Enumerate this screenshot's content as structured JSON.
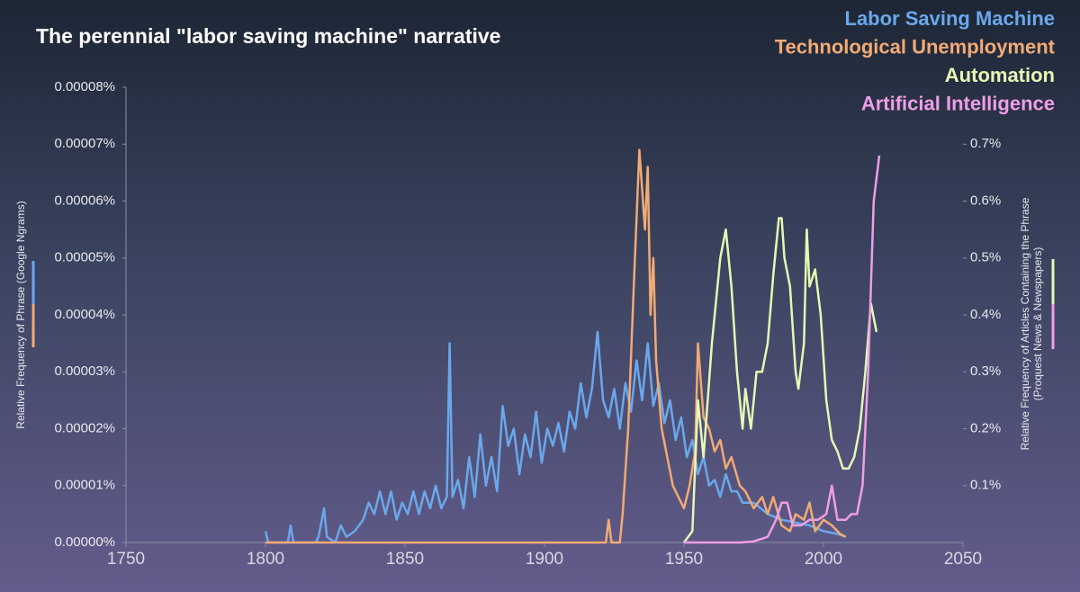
{
  "chart_data": {
    "type": "line",
    "title": "The perennial \"labor saving machine\" narrative",
    "ylabel": "Relative Frequency of Phrase (Google Ngrams)",
    "y2label": [
      "Relative Frequency of Articles Containing the Phrase",
      "(Proquest News & Newspapers)"
    ],
    "xlim": [
      1750,
      2050
    ],
    "xticks": [
      1750,
      1800,
      1850,
      1900,
      1950,
      2000,
      2050
    ],
    "ylim": [
      0,
      8e-05
    ],
    "yticks": [
      {
        "value": 0,
        "label": "0.00000%"
      },
      {
        "value": 1e-05,
        "label": "0.00001%"
      },
      {
        "value": 2e-05,
        "label": "0.00002%"
      },
      {
        "value": 3e-05,
        "label": "0.00003%"
      },
      {
        "value": 4e-05,
        "label": "0.00004%"
      },
      {
        "value": 5e-05,
        "label": "0.00005%"
      },
      {
        "value": 6e-05,
        "label": "0.00006%"
      },
      {
        "value": 7e-05,
        "label": "0.00007%"
      },
      {
        "value": 8e-05,
        "label": "0.00008%"
      }
    ],
    "y2lim": [
      0,
      0.8
    ],
    "y2ticks": [
      {
        "value": 0.1,
        "label": "0.1%"
      },
      {
        "value": 0.2,
        "label": "0.2%"
      },
      {
        "value": 0.3,
        "label": "0.3%"
      },
      {
        "value": 0.4,
        "label": "0.4%"
      },
      {
        "value": 0.5,
        "label": "0.5%"
      },
      {
        "value": 0.6,
        "label": "0.6%"
      },
      {
        "value": 0.7,
        "label": "0.7%"
      }
    ],
    "series": [
      {
        "name": "Labor Saving Machine",
        "color": "#6aa8ec",
        "axis": "y",
        "x": [
          1800,
          1801,
          1808,
          1809,
          1810,
          1818,
          1819,
          1821,
          1822,
          1825,
          1827,
          1829,
          1832,
          1835,
          1837,
          1839,
          1841,
          1843,
          1845,
          1847,
          1849,
          1851,
          1853,
          1855,
          1857,
          1859,
          1861,
          1863,
          1865,
          1866,
          1867,
          1869,
          1871,
          1873,
          1875,
          1877,
          1879,
          1881,
          1883,
          1885,
          1887,
          1889,
          1891,
          1893,
          1895,
          1897,
          1899,
          1901,
          1903,
          1905,
          1907,
          1909,
          1911,
          1913,
          1915,
          1917,
          1919,
          1921,
          1923,
          1925,
          1927,
          1929,
          1931,
          1933,
          1935,
          1937,
          1939,
          1941,
          1943,
          1945,
          1947,
          1949,
          1951,
          1953,
          1955,
          1957,
          1959,
          1961,
          1963,
          1965,
          1967,
          1969,
          1971,
          1975,
          1980,
          1985,
          1990,
          1995,
          2000,
          2005,
          2008
        ],
        "values": [
          2e-06,
          0,
          0,
          3e-06,
          0,
          0,
          1e-06,
          6e-06,
          1e-06,
          0,
          3e-06,
          1e-06,
          2e-06,
          4e-06,
          7e-06,
          5e-06,
          9e-06,
          5e-06,
          9e-06,
          4e-06,
          7e-06,
          5e-06,
          9e-06,
          5e-06,
          9e-06,
          6e-06,
          1e-05,
          6e-06,
          8e-06,
          3.5e-05,
          8e-06,
          1.1e-05,
          6e-06,
          1.5e-05,
          8e-06,
          1.9e-05,
          1e-05,
          1.5e-05,
          9e-06,
          2.4e-05,
          1.7e-05,
          2e-05,
          1.2e-05,
          1.9e-05,
          1.5e-05,
          2.3e-05,
          1.4e-05,
          2e-05,
          1.7e-05,
          2.1e-05,
          1.6e-05,
          2.3e-05,
          2e-05,
          2.8e-05,
          2.2e-05,
          2.7e-05,
          3.7e-05,
          2.5e-05,
          2.2e-05,
          2.7e-05,
          2e-05,
          2.8e-05,
          2.3e-05,
          3.2e-05,
          2.5e-05,
          3.5e-05,
          2.4e-05,
          2.8e-05,
          2.1e-05,
          2.5e-05,
          1.8e-05,
          2.2e-05,
          1.5e-05,
          1.8e-05,
          1.2e-05,
          1.5e-05,
          1e-05,
          1.1e-05,
          8e-06,
          1.2e-05,
          9e-06,
          9e-06,
          7e-06,
          7e-06,
          5e-06,
          4e-06,
          3.5e-06,
          3e-06,
          2e-06,
          1.5e-06,
          1e-06
        ]
      },
      {
        "name": "Technological Unemployment",
        "color": "#f2aa74",
        "axis": "y",
        "x": [
          1800,
          1920,
          1922,
          1923,
          1924,
          1927,
          1928,
          1930,
          1932,
          1934,
          1936,
          1937,
          1938,
          1939,
          1940,
          1942,
          1944,
          1946,
          1948,
          1950,
          1952,
          1954,
          1955,
          1957,
          1959,
          1961,
          1963,
          1965,
          1967,
          1970,
          1972,
          1975,
          1978,
          1980,
          1982,
          1985,
          1988,
          1990,
          1993,
          1995,
          1997,
          2000,
          2003,
          2006,
          2008
        ],
        "values": [
          0,
          0,
          0,
          4e-06,
          0,
          0,
          5e-06,
          2e-05,
          4.5e-05,
          6.9e-05,
          5.5e-05,
          6.6e-05,
          4e-05,
          5e-05,
          3.2e-05,
          2e-05,
          1.5e-05,
          1e-05,
          8e-06,
          6e-06,
          1e-05,
          1.6e-05,
          3.5e-05,
          2.2e-05,
          2e-05,
          1.6e-05,
          1.8e-05,
          1.3e-05,
          1.5e-05,
          1e-05,
          9e-06,
          6e-06,
          8e-06,
          5e-06,
          8e-06,
          3e-06,
          2e-06,
          5e-06,
          4e-06,
          7e-06,
          2e-06,
          4e-06,
          3e-06,
          1.5e-06,
          1e-06
        ]
      },
      {
        "name": "Automation",
        "color": "#e6f7b4",
        "axis": "y2",
        "x": [
          1950,
          1953,
          1955,
          1957,
          1960,
          1963,
          1965,
          1967,
          1969,
          1971,
          1972,
          1974,
          1976,
          1978,
          1980,
          1982,
          1984,
          1985,
          1986,
          1988,
          1990,
          1991,
          1993,
          1994,
          1995,
          1997,
          1999,
          2001,
          2003,
          2005,
          2007,
          2009,
          2011,
          2013,
          2015,
          2017,
          2019
        ],
        "values": [
          0,
          0.02,
          0.25,
          0.15,
          0.35,
          0.5,
          0.55,
          0.45,
          0.3,
          0.2,
          0.27,
          0.2,
          0.3,
          0.3,
          0.35,
          0.47,
          0.57,
          0.57,
          0.5,
          0.45,
          0.3,
          0.27,
          0.35,
          0.55,
          0.45,
          0.48,
          0.4,
          0.25,
          0.18,
          0.16,
          0.13,
          0.13,
          0.15,
          0.2,
          0.3,
          0.42,
          0.37
        ]
      },
      {
        "name": "Artificial Intelligence",
        "color": "#ef9ee6",
        "axis": "y2",
        "x": [
          1950,
          1970,
          1975,
          1980,
          1983,
          1985,
          1987,
          1989,
          1992,
          1995,
          1998,
          2001,
          2003,
          2005,
          2008,
          2010,
          2012,
          2014,
          2016,
          2018,
          2020
        ],
        "values": [
          0,
          0,
          0.002,
          0.01,
          0.04,
          0.07,
          0.07,
          0.03,
          0.03,
          0.04,
          0.04,
          0.05,
          0.1,
          0.04,
          0.04,
          0.05,
          0.05,
          0.1,
          0.3,
          0.6,
          0.68
        ]
      }
    ]
  }
}
